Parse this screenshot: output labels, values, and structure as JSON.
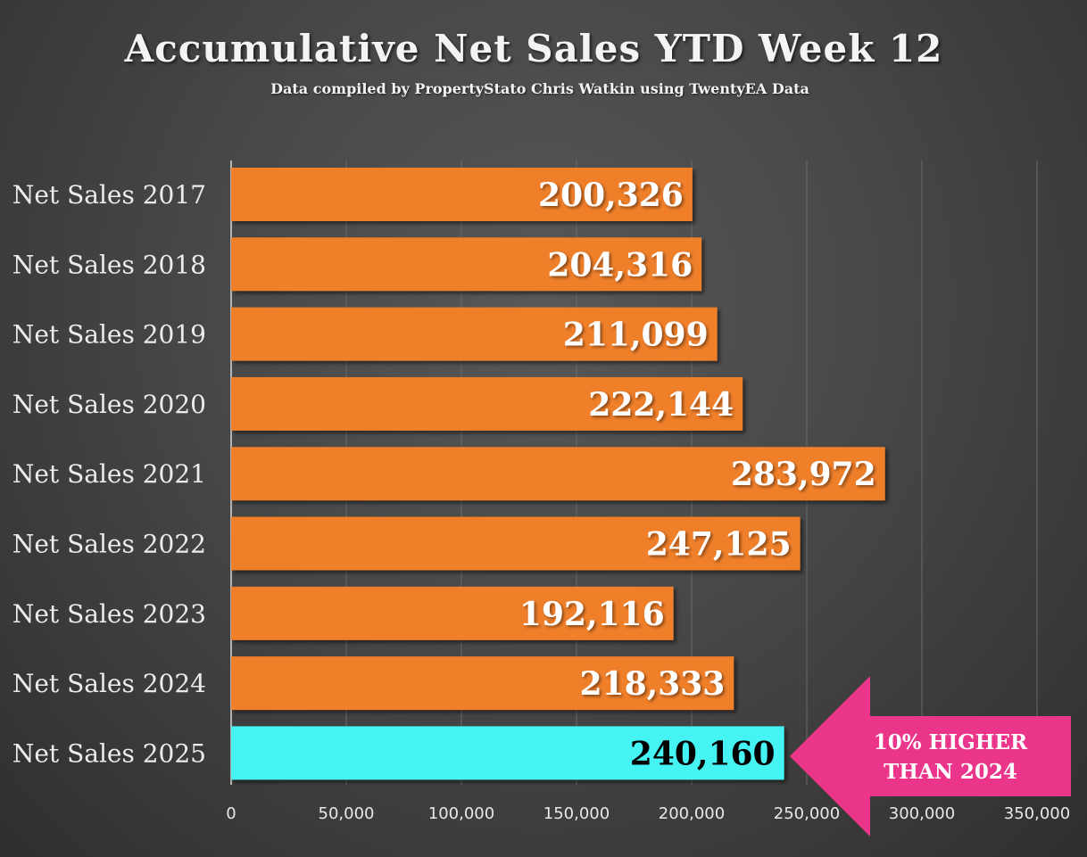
{
  "chart_data": {
    "type": "bar",
    "orientation": "horizontal",
    "title": "Accumulative Net Sales YTD Week 12",
    "subtitle": "Data compiled by PropertyStato Chris Watkin using TwentyEA Data",
    "categories": [
      "Net Sales 2017",
      "Net Sales 2018",
      "Net Sales 2019",
      "Net Sales 2020",
      "Net Sales 2021",
      "Net Sales 2022",
      "Net Sales 2023",
      "Net Sales 2024",
      "Net Sales 2025"
    ],
    "values": [
      200326,
      204316,
      211099,
      222144,
      283972,
      247125,
      192116,
      218333,
      240160
    ],
    "value_labels": [
      "200,326",
      "204,316",
      "211,099",
      "222,144",
      "283,972",
      "247,125",
      "192,116",
      "218,333",
      "240,160"
    ],
    "xlim": [
      0,
      350000
    ],
    "x_ticks": [
      0,
      50000,
      100000,
      150000,
      200000,
      250000,
      300000,
      350000
    ],
    "x_tick_labels": [
      "0",
      "50,000",
      "100,000",
      "150,000",
      "200,000",
      "250,000",
      "300,000",
      "350,000"
    ],
    "grid": true,
    "highlight_index": 8,
    "colors": {
      "bar": "#f07f2c",
      "highlight_bar": "#45f3f3",
      "value_text": "#ffffff",
      "highlight_value_text": "#000000",
      "callout": "#ea358a"
    },
    "annotation": {
      "lines": [
        "10% HIGHER",
        "THAN 2024"
      ],
      "icon": "left-arrow-icon"
    }
  }
}
